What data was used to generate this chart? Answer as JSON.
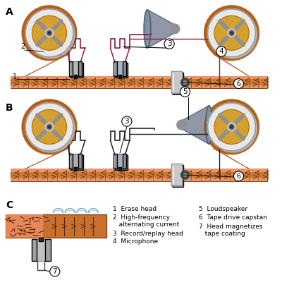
{
  "bg_color": "#ffffff",
  "tape_color_dark": "#b5601a",
  "tape_color_light": "#e8956a",
  "tape_edge_color": "#8B4513",
  "reel_outer": "#e8e8e8",
  "reel_inner": "#d4a030",
  "reel_spoke": "#909090",
  "reel_hub": "#888888",
  "head_color": "#c0c0c0",
  "head_shadow": "#888888",
  "capstan_color": "#c8c8c8",
  "wire_pink": "#8B1A4A",
  "wire_black": "#222222",
  "mic_color": "#a0aab0",
  "tape_arrow_color": "#5a3010",
  "label_color": "#111111",
  "legend_font": 6.5,
  "section_labels": [
    "A",
    "B",
    "C"
  ],
  "legend_left": [
    "1  Erase head",
    "2  High-frequency",
    "   alternating current",
    "3  Record/replay head",
    "4  Microphone"
  ],
  "legend_right": [
    "5  Loudspeaker",
    "6  Tape drive capstan",
    "7  Head magnetizes",
    "   tape coating"
  ]
}
